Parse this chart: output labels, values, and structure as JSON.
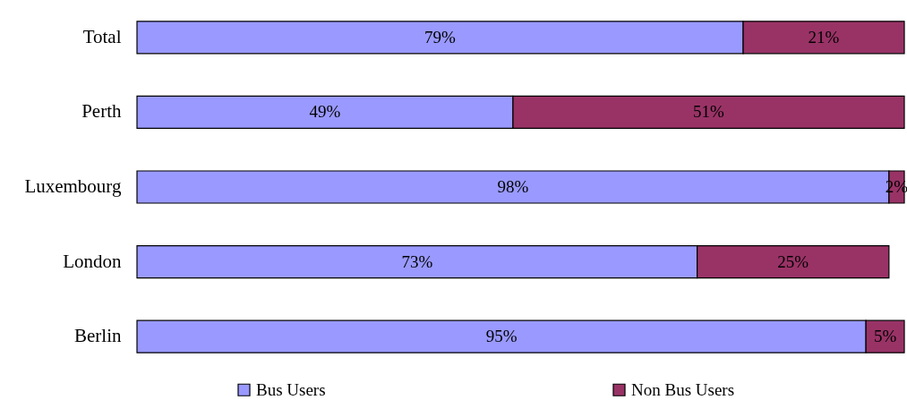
{
  "chart_data": {
    "type": "bar",
    "orientation": "horizontal",
    "stacked": true,
    "categories": [
      "Total",
      "Perth",
      "Luxembourg",
      "London",
      "Berlin"
    ],
    "series": [
      {
        "name": "Bus Users",
        "color": "#9999ff",
        "values": [
          79,
          49,
          98,
          73,
          95
        ],
        "value_labels": [
          "79%",
          "49%",
          "98%",
          "73%",
          "95%"
        ]
      },
      {
        "name": "Non Bus Users",
        "color": "#993366",
        "values": [
          21,
          51,
          2,
          25,
          5
        ],
        "value_labels": [
          "21%",
          "51%",
          "2%",
          "25%",
          "5%"
        ]
      }
    ],
    "legend": "bottom",
    "grid": false,
    "tick_labels": "y"
  }
}
